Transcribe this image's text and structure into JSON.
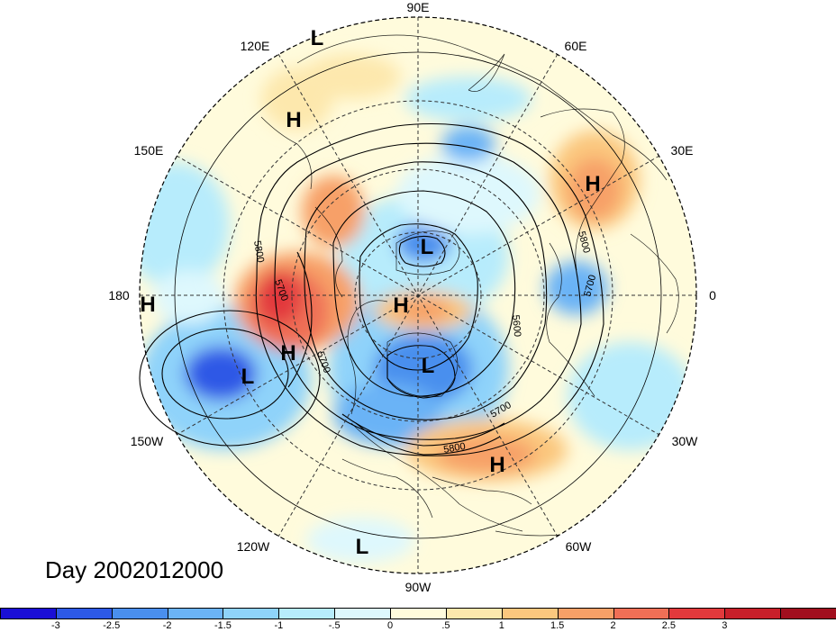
{
  "map": {
    "longitude_labels": [
      {
        "id": "lon-90e",
        "text": "90E"
      },
      {
        "id": "lon-120e",
        "text": "120E"
      },
      {
        "id": "lon-60e",
        "text": "60E"
      },
      {
        "id": "lon-150e",
        "text": "150E"
      },
      {
        "id": "lon-30e",
        "text": "30E"
      },
      {
        "id": "lon-180",
        "text": "180"
      },
      {
        "id": "lon-0",
        "text": "0"
      },
      {
        "id": "lon-150w",
        "text": "150W"
      },
      {
        "id": "lon-30w",
        "text": "30W"
      },
      {
        "id": "lon-120w",
        "text": "120W"
      },
      {
        "id": "lon-60w",
        "text": "60W"
      },
      {
        "id": "lon-90w",
        "text": "90W"
      }
    ],
    "pressure_centers": [
      {
        "id": "l-north-asia",
        "text": "L"
      },
      {
        "id": "h-east-asia",
        "text": "H"
      },
      {
        "id": "h-europe",
        "text": "H"
      },
      {
        "id": "l-pole",
        "text": "L"
      },
      {
        "id": "h-arctic",
        "text": "H"
      },
      {
        "id": "h-dateline",
        "text": "H"
      },
      {
        "id": "h-pacific",
        "text": "H"
      },
      {
        "id": "l-pacific",
        "text": "L"
      },
      {
        "id": "l-canada",
        "text": "L"
      },
      {
        "id": "h-atlantic",
        "text": "H"
      },
      {
        "id": "l-tropics",
        "text": "L"
      }
    ],
    "contour_labels": [
      "5800",
      "5700",
      "5700",
      "5800",
      "5600",
      "5700",
      "5700",
      "5800"
    ]
  },
  "title": "Day 2002012000",
  "colorbar": {
    "colors": [
      "#1a0fd6",
      "#2d59e6",
      "#4a8fee",
      "#6bb3f6",
      "#8fd3fa",
      "#b7ecfc",
      "#def8fd",
      "#fffbdc",
      "#fde8ad",
      "#fbc77e",
      "#f7a067",
      "#ef6f56",
      "#e2393c",
      "#c81f2a",
      "#a10f1e"
    ],
    "ticks": [
      "-3",
      "-2.5",
      "-2",
      "-1.5",
      "-1",
      "-.5",
      "0",
      ".5",
      "1",
      "1.5",
      "2",
      "2.5",
      "3"
    ]
  }
}
